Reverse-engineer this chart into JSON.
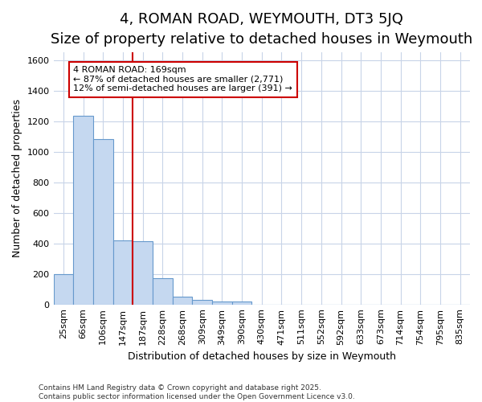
{
  "title": "4, ROMAN ROAD, WEYMOUTH, DT3 5JQ",
  "subtitle": "Size of property relative to detached houses in Weymouth",
  "xlabel": "Distribution of detached houses by size in Weymouth",
  "ylabel": "Number of detached properties",
  "bin_labels": [
    "25sqm",
    "66sqm",
    "106sqm",
    "147sqm",
    "187sqm",
    "228sqm",
    "268sqm",
    "309sqm",
    "349sqm",
    "390sqm",
    "430sqm",
    "471sqm",
    "511sqm",
    "552sqm",
    "592sqm",
    "633sqm",
    "673sqm",
    "714sqm",
    "754sqm",
    "795sqm",
    "835sqm"
  ],
  "bar_values": [
    200,
    1235,
    1080,
    420,
    415,
    170,
    50,
    30,
    20,
    20,
    0,
    0,
    0,
    0,
    0,
    0,
    0,
    0,
    0,
    0,
    0
  ],
  "bar_color": "#c5d8f0",
  "bar_edge_color": "#6699cc",
  "red_line_x": 3.5,
  "red_line_color": "#cc0000",
  "annotation_text": "4 ROMAN ROAD: 169sqm\n← 87% of detached houses are smaller (2,771)\n12% of semi-detached houses are larger (391) →",
  "annotation_box_color": "#ffffff",
  "annotation_box_edge": "#cc0000",
  "ylim": [
    0,
    1650
  ],
  "yticks": [
    0,
    200,
    400,
    600,
    800,
    1000,
    1200,
    1400,
    1600
  ],
  "footer_line1": "Contains HM Land Registry data © Crown copyright and database right 2025.",
  "footer_line2": "Contains public sector information licensed under the Open Government Licence v3.0.",
  "bg_color": "#ffffff",
  "plot_bg_color": "#ffffff",
  "grid_color": "#c8d4e8",
  "title_fontsize": 13,
  "subtitle_fontsize": 10,
  "axis_label_fontsize": 9,
  "tick_fontsize": 8
}
